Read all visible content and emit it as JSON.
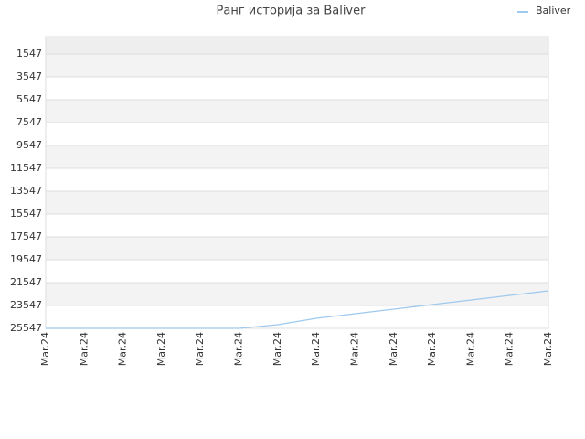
{
  "chart_data": {
    "type": "line",
    "title": "Ранг историја за Baliver",
    "categories": [
      "Mar.24",
      "Mar.24",
      "Mar.24",
      "Mar.24",
      "Mar.24",
      "Mar.24",
      "Mar.24",
      "Mar.24",
      "Mar.24",
      "Mar.24",
      "Mar.24",
      "Mar.24",
      "Mar.24",
      "Mar.24"
    ],
    "series": [
      {
        "name": "Baliver",
        "color": "#9ec9ee",
        "values": [
          25547,
          25547,
          25547,
          25547,
          25547,
          25547,
          25227,
          24667,
          24267,
          23867,
          23467,
          23067,
          22667,
          22267
        ]
      }
    ],
    "ylim": [
      25547,
      27
    ],
    "yticks": [
      1547,
      3547,
      5547,
      7547,
      9547,
      11547,
      13547,
      15547,
      17547,
      19547,
      21547,
      23547,
      25547
    ],
    "grid": true,
    "legend": "top-right"
  }
}
